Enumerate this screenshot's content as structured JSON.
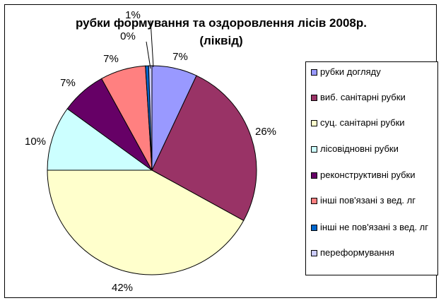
{
  "chart_data": {
    "type": "pie",
    "title": "рубки формування та оздоровлення лісів 2008р.",
    "subtitle": "(ліквід)",
    "start_angle_deg": 0,
    "direction": "clockwise",
    "legend_position": "right",
    "slices": [
      {
        "label": "рубки догляду",
        "value": 7,
        "display": "7%",
        "color": "#9999FF"
      },
      {
        "label": "виб. санітарні рубки",
        "value": 26,
        "display": "26%",
        "color": "#993366"
      },
      {
        "label": "суц. санітарні рубки",
        "value": 42,
        "display": "42%",
        "color": "#FFFFCC"
      },
      {
        "label": "лісовідновні рубки",
        "value": 10,
        "display": "10%",
        "color": "#CCFFFF"
      },
      {
        "label": "реконструктивні рубки",
        "value": 7,
        "display": "7%",
        "color": "#660066"
      },
      {
        "label": "інші пов'язані з вед. лг",
        "value": 7,
        "display": "7%",
        "color": "#FF8080"
      },
      {
        "label": "інші не пов'язані з вед. лг",
        "value": 0.5,
        "display": "0%",
        "color": "#0066CC"
      },
      {
        "label": "переформування",
        "value": 0.5,
        "display": "1%",
        "color": "#CCCCFF"
      }
    ]
  }
}
